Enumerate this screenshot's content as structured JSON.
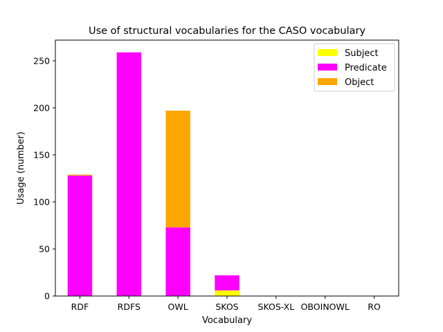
{
  "chart_data": {
    "type": "bar",
    "stacked": true,
    "title": "Use of structural vocabularies for the CASO vocabulary",
    "xlabel": "Vocabulary",
    "ylabel": "Usage (number)",
    "categories": [
      "RDF",
      "RDFS",
      "OWL",
      "SKOS",
      "SKOS-XL",
      "OBOINOWL",
      "RO"
    ],
    "series": [
      {
        "name": "Subject",
        "color": "#ffff00",
        "values": [
          0,
          0,
          0,
          6,
          0,
          0,
          0
        ]
      },
      {
        "name": "Predicate",
        "color": "#ff00ff",
        "values": [
          128,
          259,
          73,
          16,
          0,
          0,
          0
        ]
      },
      {
        "name": "Object",
        "color": "#ffa500",
        "values": [
          1,
          0,
          124,
          0,
          0,
          0,
          0
        ]
      }
    ],
    "ylim": [
      0,
      272
    ],
    "yticks": [
      0,
      50,
      100,
      150,
      200,
      250
    ],
    "legend": "top-right",
    "grid": false
  }
}
